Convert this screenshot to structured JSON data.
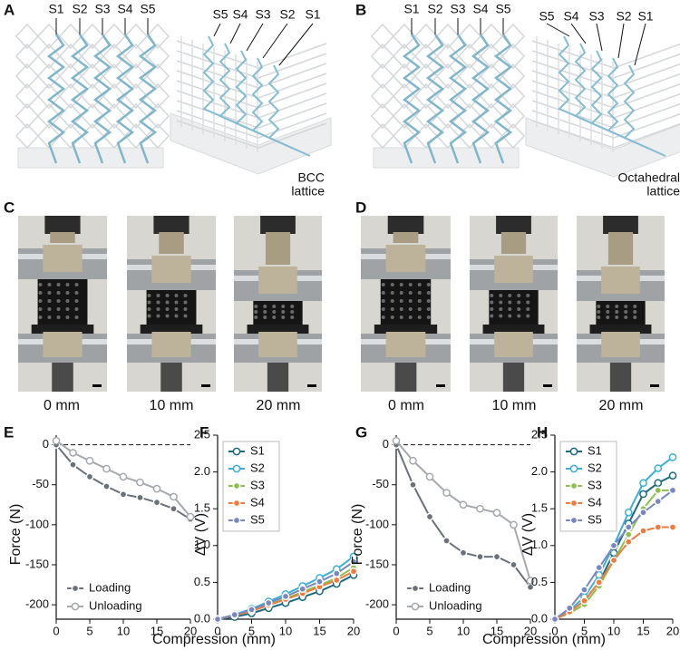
{
  "panel_labels": [
    "A",
    "B",
    "C",
    "D",
    "E",
    "F",
    "G",
    "H"
  ],
  "lattice_figures": [
    {
      "front_labels": [
        "S1",
        "S2",
        "S3",
        "S4",
        "S5"
      ],
      "iso_labels": [
        "S5",
        "S4",
        "S3",
        "S2",
        "S1"
      ],
      "caption": [
        "BCC",
        "lattice"
      ]
    },
    {
      "front_labels": [
        "S1",
        "S2",
        "S3",
        "S4",
        "S5"
      ],
      "iso_labels": [
        "S5",
        "S4",
        "S3",
        "S2",
        "S1"
      ],
      "caption": [
        "Octahedral",
        "lattice"
      ]
    }
  ],
  "photo_captions": [
    [
      "0 mm",
      "10 mm",
      "20 mm"
    ],
    [
      "0 mm",
      "10 mm",
      "20 mm"
    ]
  ],
  "chart_data": [
    {
      "type": "line",
      "xlabel": "Compression (mm)",
      "ylabel": "Force (N)",
      "x": [
        0,
        2.5,
        5,
        7.5,
        10,
        12.5,
        15,
        17.5,
        20
      ],
      "series": [
        {
          "name": "Loading",
          "color": "#6b7178",
          "marker": "filled",
          "values": [
            0,
            -25,
            -40,
            -52,
            -62,
            -66,
            -72,
            -80,
            -93
          ]
        },
        {
          "name": "Unloading",
          "color": "#a5a9ad",
          "marker": "open",
          "values": [
            5,
            -10,
            -20,
            -30,
            -40,
            -47,
            -55,
            -65,
            -90
          ]
        }
      ],
      "xlim": [
        0,
        20
      ],
      "ylim": [
        -218,
        12
      ],
      "xticks": [
        0,
        5,
        10,
        15,
        20
      ],
      "yticks": [
        -200,
        -150,
        -100,
        -50,
        0
      ],
      "hline": 0,
      "legend": "lower left"
    },
    {
      "type": "line",
      "ylabel": "ΔV (V)",
      "x": [
        0,
        2.5,
        5,
        7.5,
        10,
        12.5,
        15,
        17.5,
        20
      ],
      "series": [
        {
          "name": "S1",
          "color": "#1b6a80",
          "marker": "open",
          "values": [
            0,
            0.03,
            0.08,
            0.15,
            0.22,
            0.3,
            0.38,
            0.48,
            0.6
          ]
        },
        {
          "name": "S2",
          "color": "#3cb0d2",
          "marker": "open",
          "values": [
            0,
            0.06,
            0.14,
            0.24,
            0.34,
            0.45,
            0.56,
            0.68,
            0.85
          ]
        },
        {
          "name": "S3",
          "color": "#8dbf4b",
          "marker": "filled",
          "values": [
            0,
            0.05,
            0.12,
            0.2,
            0.28,
            0.37,
            0.46,
            0.56,
            0.7
          ]
        },
        {
          "name": "S4",
          "color": "#ef7b3d",
          "marker": "filled",
          "values": [
            0,
            0.05,
            0.11,
            0.19,
            0.27,
            0.35,
            0.44,
            0.53,
            0.65
          ]
        },
        {
          "name": "S5",
          "color": "#7887c0",
          "marker": "filled",
          "values": [
            0,
            0.06,
            0.13,
            0.22,
            0.31,
            0.41,
            0.51,
            0.62,
            0.78
          ]
        }
      ],
      "xlim": [
        0,
        20
      ],
      "ylim": [
        0,
        2.5
      ],
      "xticks": [
        0,
        5,
        10,
        15,
        20
      ],
      "yticks": [
        {
          "value": 0,
          "label": "0.0"
        },
        0.5,
        {
          "value": 1,
          "label": "1.0"
        },
        1.5,
        {
          "value": 2,
          "label": "2.0"
        },
        2.5
      ],
      "legend": "upper left"
    },
    {
      "type": "line",
      "xlabel": "Compression (mm)",
      "ylabel": "Force (N)",
      "x": [
        0,
        2.5,
        5,
        7.5,
        10,
        12.5,
        15,
        17.5,
        20
      ],
      "series": [
        {
          "name": "Loading",
          "color": "#6b7178",
          "marker": "filled",
          "values": [
            0,
            -50,
            -90,
            -120,
            -135,
            -140,
            -140,
            -150,
            -178
          ]
        },
        {
          "name": "Unloading",
          "color": "#a5a9ad",
          "marker": "open",
          "values": [
            5,
            -20,
            -40,
            -60,
            -75,
            -80,
            -85,
            -100,
            -170
          ]
        }
      ],
      "xlim": [
        0,
        20
      ],
      "ylim": [
        -218,
        12
      ],
      "xticks": [
        0,
        5,
        10,
        15,
        20
      ],
      "yticks": [
        -200,
        -150,
        -100,
        -50,
        0
      ],
      "hline": 0,
      "legend": "lower left"
    },
    {
      "type": "line",
      "ylabel": "ΔV (V)",
      "x": [
        0,
        2.5,
        5,
        7.5,
        10,
        12.5,
        15,
        17.5,
        20
      ],
      "series": [
        {
          "name": "S1",
          "color": "#1b6a80",
          "marker": "open",
          "values": [
            0,
            0.1,
            0.25,
            0.5,
            0.9,
            1.3,
            1.7,
            1.85,
            1.95
          ]
        },
        {
          "name": "S2",
          "color": "#3cb0d2",
          "marker": "open",
          "values": [
            0,
            0.12,
            0.3,
            0.6,
            1.0,
            1.45,
            1.85,
            2.05,
            2.2
          ]
        },
        {
          "name": "S3",
          "color": "#8dbf4b",
          "marker": "filled",
          "values": [
            0,
            0.08,
            0.2,
            0.45,
            0.8,
            1.15,
            1.5,
            1.75,
            1.75
          ]
        },
        {
          "name": "S4",
          "color": "#ef7b3d",
          "marker": "filled",
          "values": [
            0,
            0.1,
            0.25,
            0.5,
            0.8,
            1.05,
            1.2,
            1.25,
            1.25
          ]
        },
        {
          "name": "S5",
          "color": "#7887c0",
          "marker": "filled",
          "values": [
            0,
            0.15,
            0.4,
            0.7,
            1.0,
            1.25,
            1.45,
            1.6,
            1.75
          ]
        }
      ],
      "xlim": [
        0,
        20
      ],
      "ylim": [
        0,
        2.5
      ],
      "xticks": [
        0,
        5,
        10,
        15,
        20
      ],
      "yticks": [
        {
          "value": 0,
          "label": "0.0"
        },
        0.5,
        {
          "value": 1,
          "label": "1.0"
        },
        1.5,
        {
          "value": 2,
          "label": "2.0"
        },
        2.5
      ],
      "legend": "upper left"
    }
  ]
}
